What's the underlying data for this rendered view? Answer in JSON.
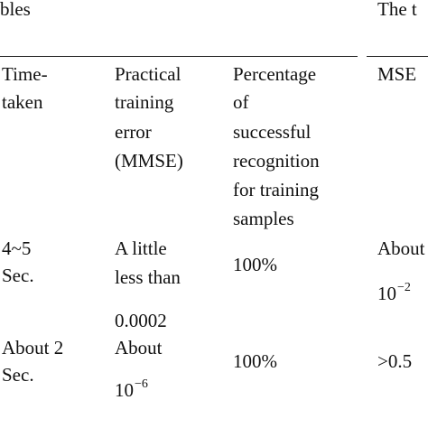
{
  "table": {
    "group_headers": [
      "bles",
      "The t"
    ],
    "headers": [
      [
        "Time-",
        "taken"
      ],
      [
        "Practical",
        "training",
        "error",
        "(MMSE)"
      ],
      [
        "Percentage",
        "of",
        "successful",
        "recognition",
        "for training",
        "samples"
      ],
      [
        "MSE"
      ]
    ],
    "rows": [
      [
        [
          "4~5",
          "Sec."
        ],
        [
          "A little",
          "less than",
          "0.0002"
        ],
        [
          "100%"
        ],
        [
          "About",
          {
            "base": "10",
            "exponent": "−2"
          }
        ]
      ],
      [
        [
          "About 2",
          "Sec."
        ],
        [
          "About",
          {
            "base": "10",
            "exponent": "−6"
          }
        ],
        [
          "100%"
        ],
        [
          ">0.5"
        ]
      ]
    ]
  }
}
